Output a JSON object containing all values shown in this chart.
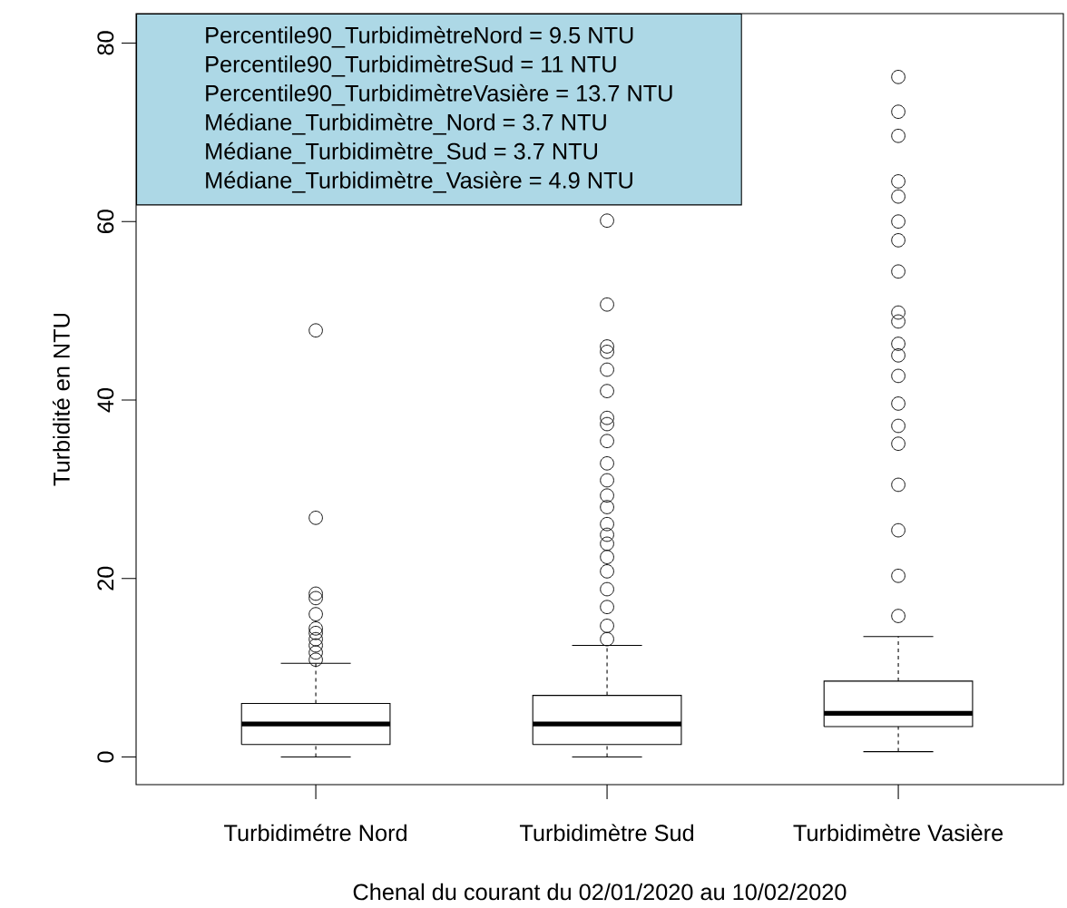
{
  "chart_data": {
    "type": "box",
    "xlabel": "Chenal du courant du 02/01/2020 au 10/02/2020",
    "ylabel": "Turbidité en NTU",
    "categories": [
      "Turbidimétre Nord",
      "Turbidimètre Sud",
      "Turbidimètre Vasière"
    ],
    "boxes": [
      {
        "low": 0,
        "q1": 1.4,
        "median": 3.7,
        "q3": 6.0,
        "high": 10.5,
        "outliers": [
          47.8,
          26.8,
          18.3,
          17.8,
          16.0,
          14.4,
          13.9,
          13.2,
          12.5,
          11.7,
          10.9
        ]
      },
      {
        "low": 0,
        "q1": 1.4,
        "median": 3.7,
        "q3": 6.9,
        "high": 12.5,
        "outliers": [
          60.1,
          50.7,
          46.0,
          45.4,
          43.4,
          41.0,
          38.0,
          37.3,
          35.4,
          32.9,
          31.0,
          29.3,
          28.0,
          26.1,
          24.9,
          23.9,
          22.4,
          20.8,
          18.8,
          16.8,
          14.7,
          13.2
        ]
      },
      {
        "low": 0.6,
        "q1": 3.4,
        "median": 4.9,
        "q3": 8.5,
        "high": 13.5,
        "outliers": [
          76.2,
          72.3,
          69.6,
          64.5,
          62.8,
          60.0,
          57.9,
          54.4,
          49.8,
          48.8,
          46.3,
          45.0,
          42.7,
          39.6,
          37.1,
          35.1,
          30.5,
          25.4,
          20.3,
          15.8
        ]
      }
    ],
    "marker": "circle",
    "ylim": [
      -3.1,
      83.3
    ],
    "yticks": [
      0,
      20,
      40,
      60,
      80
    ],
    "annotations": [
      "Percentile90_TurbidimètreNord = 9.5 NTU",
      "Percentile90_TurbidimètreSud = 11 NTU",
      "Percentile90_TurbidimètreVasière = 13.7 NTU",
      "Médiane_Turbidimètre_Nord = 3.7 NTU",
      "Médiane_Turbidimètre_Sud = 3.7 NTU",
      "Médiane_Turbidimètre_Vasière = 4.9 NTU"
    ]
  }
}
